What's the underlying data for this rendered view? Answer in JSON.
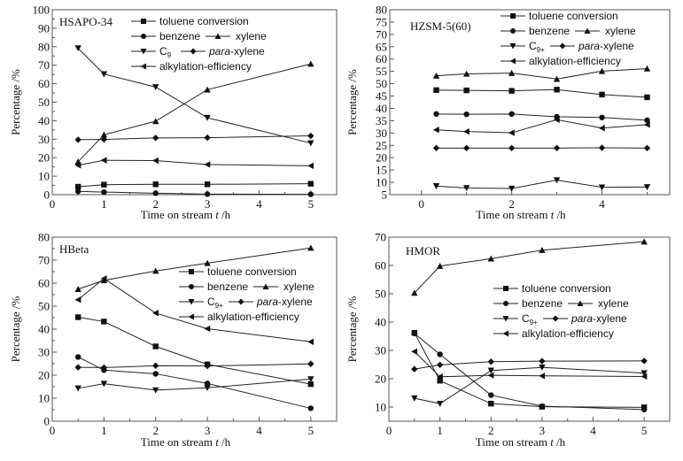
{
  "chart_data": [
    {
      "type": "line",
      "title": "HSAPO-34",
      "xlabel": "Time on stream",
      "xlabel_var": "t",
      "xlabel_unit": "/h",
      "ylabel": "Percentage /%",
      "xlim": [
        0,
        5.5
      ],
      "ylim": [
        0,
        100
      ],
      "xticks": [
        0,
        1,
        2,
        3,
        4,
        5
      ],
      "yticks": [
        0,
        10,
        20,
        30,
        40,
        50,
        60,
        70,
        80,
        90,
        100
      ],
      "legend_position": "top-right",
      "x": [
        0.5,
        1,
        2,
        3,
        5
      ],
      "series": [
        {
          "name": "toluene conversion",
          "marker": "square",
          "values": [
            4.3,
            5.4,
            5.6,
            5.6,
            5.9
          ]
        },
        {
          "name": "benzene",
          "marker": "circle",
          "values": [
            1.8,
            1.4,
            0.8,
            0.3,
            0.2
          ]
        },
        {
          "name": "xylene",
          "marker": "triangle-up",
          "values": [
            17.8,
            32.4,
            39.7,
            56.8,
            70.7
          ]
        },
        {
          "name": "C9",
          "marker": "triangle-down",
          "values": [
            79.2,
            65.2,
            58.2,
            41.6,
            27.9
          ]
        },
        {
          "name": "para-xylene",
          "marker": "diamond",
          "values": [
            29.7,
            29.9,
            30.7,
            30.8,
            31.8
          ]
        },
        {
          "name": "alkylation-efficiency",
          "marker": "triangle-left",
          "values": [
            15.9,
            18.6,
            18.4,
            16.3,
            15.6
          ]
        }
      ]
    },
    {
      "type": "line",
      "title": "HZSM-5(60)",
      "xlabel": "Time on stream",
      "xlabel_var": "t",
      "xlabel_unit": "/h",
      "ylabel": "Percentage /%",
      "xlim": [
        -0.7,
        5.5
      ],
      "ylim": [
        5,
        80
      ],
      "xticks": [
        0,
        2,
        4
      ],
      "yticks": [
        5,
        10,
        15,
        20,
        25,
        30,
        35,
        40,
        45,
        50,
        55,
        60,
        65,
        70,
        75,
        80
      ],
      "legend_position": "top-right",
      "x": [
        0.33,
        1,
        2,
        3,
        4,
        5
      ],
      "series": [
        {
          "name": "toluene conversion",
          "marker": "square",
          "values": [
            47.4,
            47.3,
            47.1,
            47.6,
            45.6,
            44.5
          ]
        },
        {
          "name": "benzene",
          "marker": "circle",
          "values": [
            37.7,
            37.6,
            37.7,
            36.6,
            36.3,
            35.2
          ]
        },
        {
          "name": "xylene",
          "marker": "triangle-up",
          "values": [
            53.2,
            54.0,
            54.3,
            51.9,
            55.1,
            56.1
          ]
        },
        {
          "name": "C9+",
          "marker": "triangle-down",
          "values": [
            8.5,
            7.7,
            7.5,
            10.9,
            8.0,
            8.1
          ]
        },
        {
          "name": "para-xylene",
          "marker": "diamond",
          "values": [
            23.9,
            23.9,
            23.9,
            23.9,
            24.0,
            23.9
          ]
        },
        {
          "name": "alkylation-efficiency",
          "marker": "triangle-left",
          "values": [
            31.3,
            30.6,
            30.1,
            35.4,
            32.0,
            33.4
          ]
        }
      ]
    },
    {
      "type": "line",
      "title": "HBeta",
      "xlabel": "Time on stream",
      "xlabel_var": "t",
      "xlabel_unit": "/h",
      "ylabel": "Percentage /%",
      "xlim": [
        0,
        5.5
      ],
      "ylim": [
        0,
        80
      ],
      "xticks": [
        0,
        1,
        2,
        3,
        4,
        5
      ],
      "yticks": [
        0,
        10,
        20,
        30,
        40,
        50,
        60,
        70,
        80
      ],
      "legend_position": "center-right",
      "x": [
        0.5,
        1,
        2,
        3,
        5
      ],
      "series": [
        {
          "name": "toluene conversion",
          "marker": "square",
          "values": [
            45.2,
            43.3,
            32.5,
            24.7,
            16.1
          ]
        },
        {
          "name": "benzene",
          "marker": "circle",
          "values": [
            27.9,
            22.2,
            20.6,
            16.4,
            5.6
          ]
        },
        {
          "name": "xylene",
          "marker": "triangle-up",
          "values": [
            57.4,
            61.2,
            65.3,
            68.7,
            75.3
          ]
        },
        {
          "name": "C9+",
          "marker": "triangle-down",
          "values": [
            14.3,
            16.3,
            13.5,
            14.5,
            18.3
          ]
        },
        {
          "name": "para-xylene",
          "marker": "diamond",
          "values": [
            23.4,
            23.3,
            24.1,
            24.0,
            24.9
          ]
        },
        {
          "name": "alkylation-efficiency",
          "marker": "triangle-left",
          "values": [
            52.8,
            62.0,
            47.0,
            40.2,
            34.5
          ]
        }
      ]
    },
    {
      "type": "line",
      "title": "HMOR",
      "xlabel": "Time on stream",
      "xlabel_var": "t",
      "xlabel_unit": "/h",
      "ylabel": "Percentage /%",
      "xlim": [
        0,
        5.5
      ],
      "ylim": [
        5,
        70
      ],
      "xticks": [
        0,
        1,
        2,
        3,
        4,
        5
      ],
      "yticks": [
        10,
        20,
        30,
        40,
        50,
        60,
        70
      ],
      "legend_position": "center-right",
      "x": [
        0.5,
        1,
        2,
        3,
        5
      ],
      "series": [
        {
          "name": "toluene conversion",
          "marker": "square",
          "values": [
            36.2,
            19.3,
            11.2,
            10.1,
            9.9
          ]
        },
        {
          "name": "benzene",
          "marker": "circle",
          "values": [
            36.0,
            28.6,
            14.2,
            10.3,
            9.1
          ]
        },
        {
          "name": "xylene",
          "marker": "triangle-up",
          "values": [
            50.3,
            59.8,
            62.4,
            65.4,
            68.4
          ]
        },
        {
          "name": "C9+",
          "marker": "triangle-down",
          "values": [
            13.1,
            11.2,
            22.9,
            24.0,
            22.0
          ]
        },
        {
          "name": "para-xylene",
          "marker": "diamond",
          "values": [
            23.4,
            24.9,
            26.0,
            26.2,
            26.3
          ]
        },
        {
          "name": "alkylation-efficiency",
          "marker": "triangle-left",
          "values": [
            29.6,
            20.7,
            21.2,
            21.0,
            20.8
          ]
        }
      ]
    }
  ],
  "legend": {
    "toluene": "toluene conversion",
    "benzene": "benzene",
    "xylene": "xylene",
    "c9_base": "C",
    "c9_sub_panel1": "9",
    "c9_sub": "9+",
    "para_italic": "para",
    "para_rest": "-xylene",
    "alkylation": "alkylation-efficiency"
  }
}
